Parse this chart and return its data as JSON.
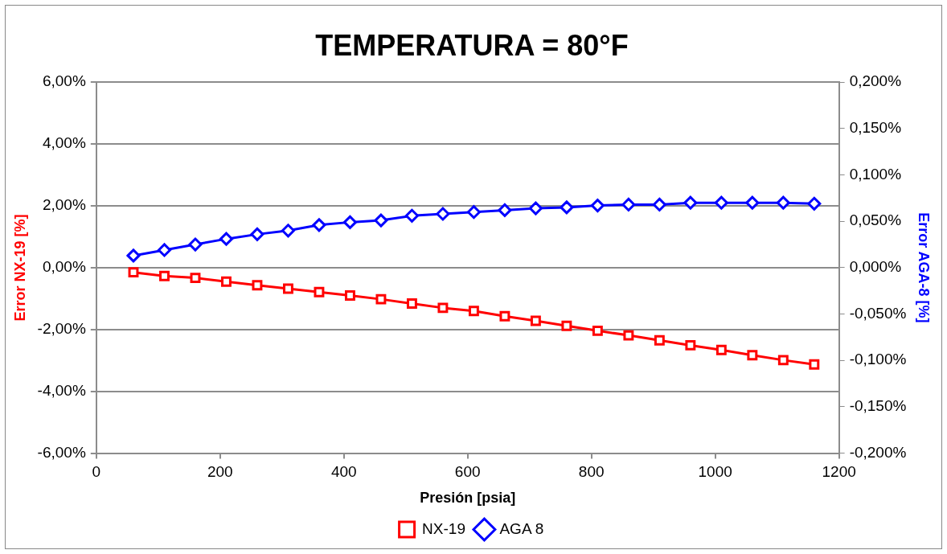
{
  "chart_data": {
    "type": "line",
    "title": "TEMPERATURA = 80°F",
    "xlabel": "Presión [psia]",
    "ylabel": "Error NX-19 [%]",
    "y2label": "Error AGA-8 [%]",
    "x": [
      60,
      110,
      160,
      210,
      260,
      310,
      360,
      410,
      460,
      510,
      560,
      610,
      660,
      710,
      760,
      810,
      860,
      910,
      960,
      1010,
      1060,
      1110,
      1160
    ],
    "series": [
      {
        "name": "NX-19",
        "color": "#ff0000",
        "marker": "square",
        "values": [
          -0.15,
          -0.27,
          -0.33,
          -0.45,
          -0.57,
          -0.68,
          -0.79,
          -0.9,
          -1.02,
          -1.16,
          -1.3,
          -1.4,
          -1.57,
          -1.72,
          -1.88,
          -2.04,
          -2.19,
          -2.35,
          -2.51,
          -2.66,
          -2.83,
          -2.99,
          -3.13
        ]
      },
      {
        "name": "AGA 8",
        "color": "#0000ff",
        "marker": "diamond",
        "axis": "y2",
        "values": [
          0.013,
          0.019,
          0.025,
          0.031,
          0.036,
          0.04,
          0.046,
          0.049,
          0.051,
          0.056,
          0.058,
          0.06,
          0.062,
          0.064,
          0.065,
          0.067,
          0.068,
          0.068,
          0.07,
          0.07,
          0.07,
          0.07,
          0.069
        ]
      }
    ],
    "xlim": [
      0,
      1200
    ],
    "xticks": [
      0,
      200,
      400,
      600,
      800,
      1000,
      1200
    ],
    "ylim": [
      -6,
      6
    ],
    "yticks": [
      {
        "value": -6,
        "label": "-6,00%"
      },
      {
        "value": -4,
        "label": "-4,00%"
      },
      {
        "value": -2,
        "label": "-2,00%"
      },
      {
        "value": 0,
        "label": "0,00%"
      },
      {
        "value": 2,
        "label": "2,00%"
      },
      {
        "value": 4,
        "label": "4,00%"
      },
      {
        "value": 6,
        "label": "6,00%"
      }
    ],
    "y2lim": [
      -0.2,
      0.2
    ],
    "y2ticks": [
      {
        "value": -0.2,
        "label": "-0,200%"
      },
      {
        "value": -0.15,
        "label": "-0,150%"
      },
      {
        "value": -0.1,
        "label": "-0,100%"
      },
      {
        "value": -0.05,
        "label": "-0,050%"
      },
      {
        "value": 0,
        "label": "0,000%"
      },
      {
        "value": 0.05,
        "label": "0,050%"
      },
      {
        "value": 0.1,
        "label": "0,100%"
      },
      {
        "value": 0.15,
        "label": "0,150%"
      },
      {
        "value": 0.2,
        "label": "0,200%"
      }
    ],
    "grid": "y",
    "legend": "bottom",
    "line_style": "solid"
  }
}
